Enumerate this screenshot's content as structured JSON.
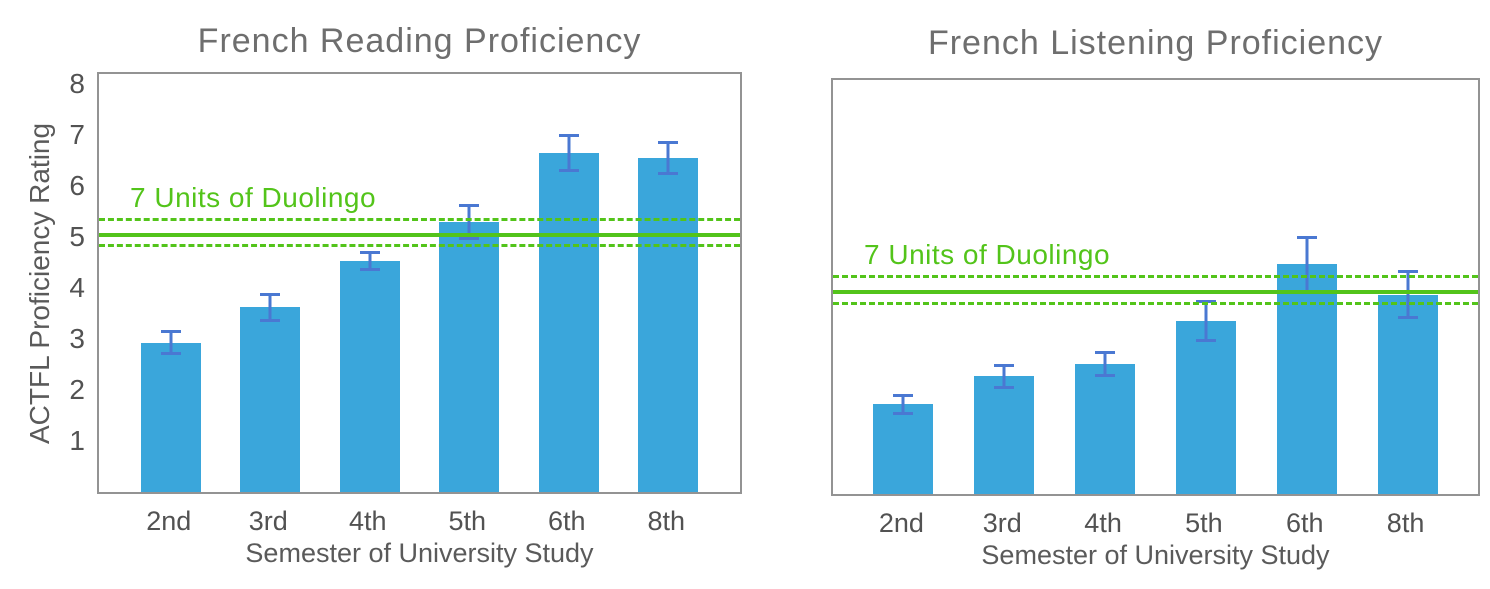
{
  "figure": {
    "background": "#ffffff"
  },
  "colors": {
    "bar_fill": "#3aa6db",
    "error_bar": "#4a78d2",
    "duolingo_green": "#53c41a",
    "title_text": "#6e6e6e",
    "axis_label_text": "#5a5a5a",
    "tick_text": "#525252",
    "frame": "#939393"
  },
  "chart_data": [
    {
      "type": "bar",
      "title": "French Reading Proficiency",
      "xlabel": "Semester of University Study",
      "ylabel": "ACTFL Proficiency Rating",
      "categories": [
        "2nd",
        "3rd",
        "4th",
        "5th",
        "6th",
        "8th"
      ],
      "values": [
        2.93,
        3.62,
        4.53,
        5.3,
        6.65,
        6.55
      ],
      "error_bars": [
        0.25,
        0.28,
        0.2,
        0.35,
        0.37,
        0.33
      ],
      "yticks": [
        1,
        2,
        3,
        4,
        5,
        6,
        7,
        8
      ],
      "ylim": [
        0,
        8.2
      ],
      "grid": false,
      "legend": "none",
      "reference_line": {
        "label": "7 Units of Duolingo",
        "value": 5.05,
        "band_upper": 5.32,
        "band_lower": 4.81
      }
    },
    {
      "type": "bar",
      "title": "French Listening Proficiency",
      "xlabel": "Semester of University Study",
      "ylabel": "",
      "categories": [
        "2nd",
        "3rd",
        "4th",
        "5th",
        "6th",
        "8th"
      ],
      "values": [
        1.78,
        2.33,
        2.57,
        3.43,
        4.55,
        3.95
      ],
      "error_bars": [
        0.21,
        0.25,
        0.26,
        0.41,
        0.56,
        0.48
      ],
      "yticks": [],
      "ylim": [
        0,
        8.2
      ],
      "grid": false,
      "legend": "none",
      "reference_line": {
        "label": "7 Units of Duolingo",
        "value": 4.0,
        "band_upper": 4.28,
        "band_lower": 3.74
      }
    }
  ]
}
